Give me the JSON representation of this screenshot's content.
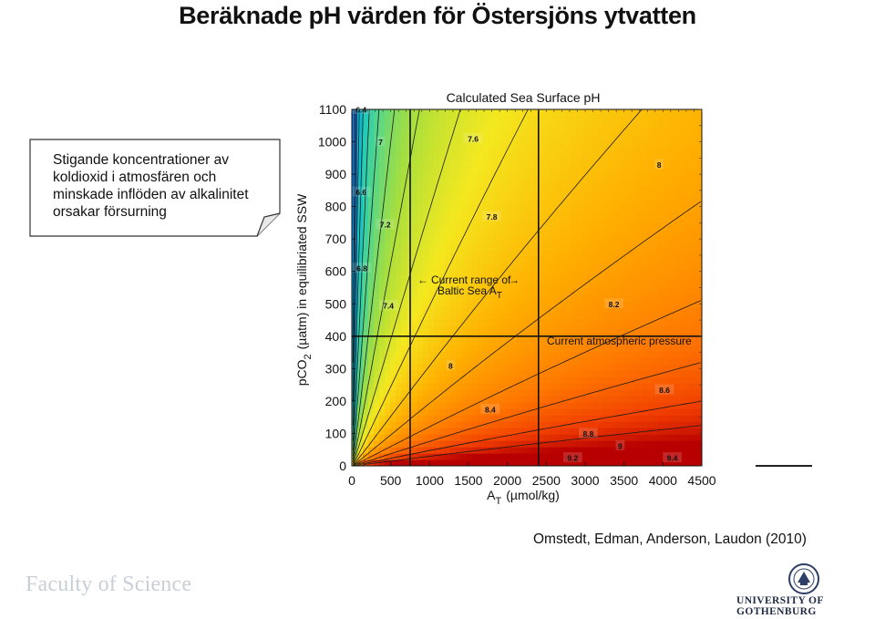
{
  "slide": {
    "title": "Beräknade pH värden för Östersjöns ytvatten",
    "callout": "Stigande koncentrationer av koldioxid i atmosfären och minskade inflöden av alkalinitet orsakar försurning",
    "citation": "Omstedt, Edman, Anderson, Laudon (2010)",
    "faculty": "Faculty of Science",
    "university": "UNIVERSITY OF GOTHENBURG",
    "seal_icon": "university-seal-icon"
  },
  "chart_data": {
    "type": "heatmap",
    "title": "Calculated Sea Surface pH",
    "xlabel_main": "A",
    "xlabel_sub": "T",
    "xlabel_rest": "(µmol/kg)",
    "ylabel_main": "pCO",
    "ylabel_sub": "2",
    "ylabel_rest": "(µatm) in equilibriated SSW",
    "xlim": [
      0,
      4500
    ],
    "ylim": [
      0,
      1100
    ],
    "x_ticks": [
      0,
      500,
      1000,
      1500,
      2000,
      2500,
      3000,
      3500,
      4000,
      4500
    ],
    "x_tick_labels": [
      "0",
      "500",
      "1000",
      "1500",
      "2000",
      "2500",
      "3000",
      "3500",
      "4000",
      "4500"
    ],
    "y_ticks": [
      0,
      100,
      200,
      300,
      400,
      500,
      600,
      700,
      800,
      900,
      1000,
      1100
    ],
    "y_tick_labels": [
      "0",
      "100",
      "200",
      "300",
      "400",
      "500",
      "600",
      "700",
      "800",
      "900",
      "1000",
      "1100"
    ],
    "colormap": [
      "#1565c0",
      "#00a7e0",
      "#16c9c0",
      "#54d68a",
      "#a7df3d",
      "#f4e81f",
      "#ffb000",
      "#ff7a00",
      "#f03c00",
      "#b80000"
    ],
    "ph_range": [
      6.3,
      9.6
    ],
    "contour_levels": [
      6.4,
      6.6,
      6.8,
      7,
      7.2,
      7.4,
      7.6,
      7.8,
      8,
      8.2,
      8.4,
      8.6,
      8.8,
      9,
      9.2,
      9.4
    ],
    "contour_labels": [
      {
        "text": "6.4",
        "x": 120,
        "y": 1100
      },
      {
        "text": "6.6",
        "x": 120,
        "y": 845
      },
      {
        "text": "6.8",
        "x": 130,
        "y": 610
      },
      {
        "text": "7",
        "x": 370,
        "y": 1000
      },
      {
        "text": "7.2",
        "x": 430,
        "y": 745
      },
      {
        "text": "7.4",
        "x": 470,
        "y": 495
      },
      {
        "text": "7.6",
        "x": 1560,
        "y": 1010
      },
      {
        "text": "7.8",
        "x": 1800,
        "y": 770
      },
      {
        "text": "8",
        "x": 3950,
        "y": 930
      },
      {
        "text": "8",
        "x": 1270,
        "y": 310
      },
      {
        "text": "8.2",
        "x": 3370,
        "y": 500
      },
      {
        "text": "8.4",
        "x": 1780,
        "y": 175
      },
      {
        "text": "8.6",
        "x": 4020,
        "y": 235
      },
      {
        "text": "8.8",
        "x": 3040,
        "y": 100
      },
      {
        "text": "9",
        "x": 3450,
        "y": 62
      },
      {
        "text": "9.2",
        "x": 2840,
        "y": 25
      },
      {
        "text": "9.4",
        "x": 4120,
        "y": 25
      }
    ],
    "reference_lines": {
      "vertical_x": [
        750,
        2400
      ],
      "horizontal_y": [
        400
      ]
    },
    "annotations": {
      "baltic_range_line1": "Current range of",
      "baltic_range_line2": "Baltic Sea A",
      "baltic_range_sub": "T",
      "baltic_range_arrow_left": "←",
      "baltic_range_arrow_right": "→",
      "atmospheric": "Current atmospheric pressure"
    }
  }
}
